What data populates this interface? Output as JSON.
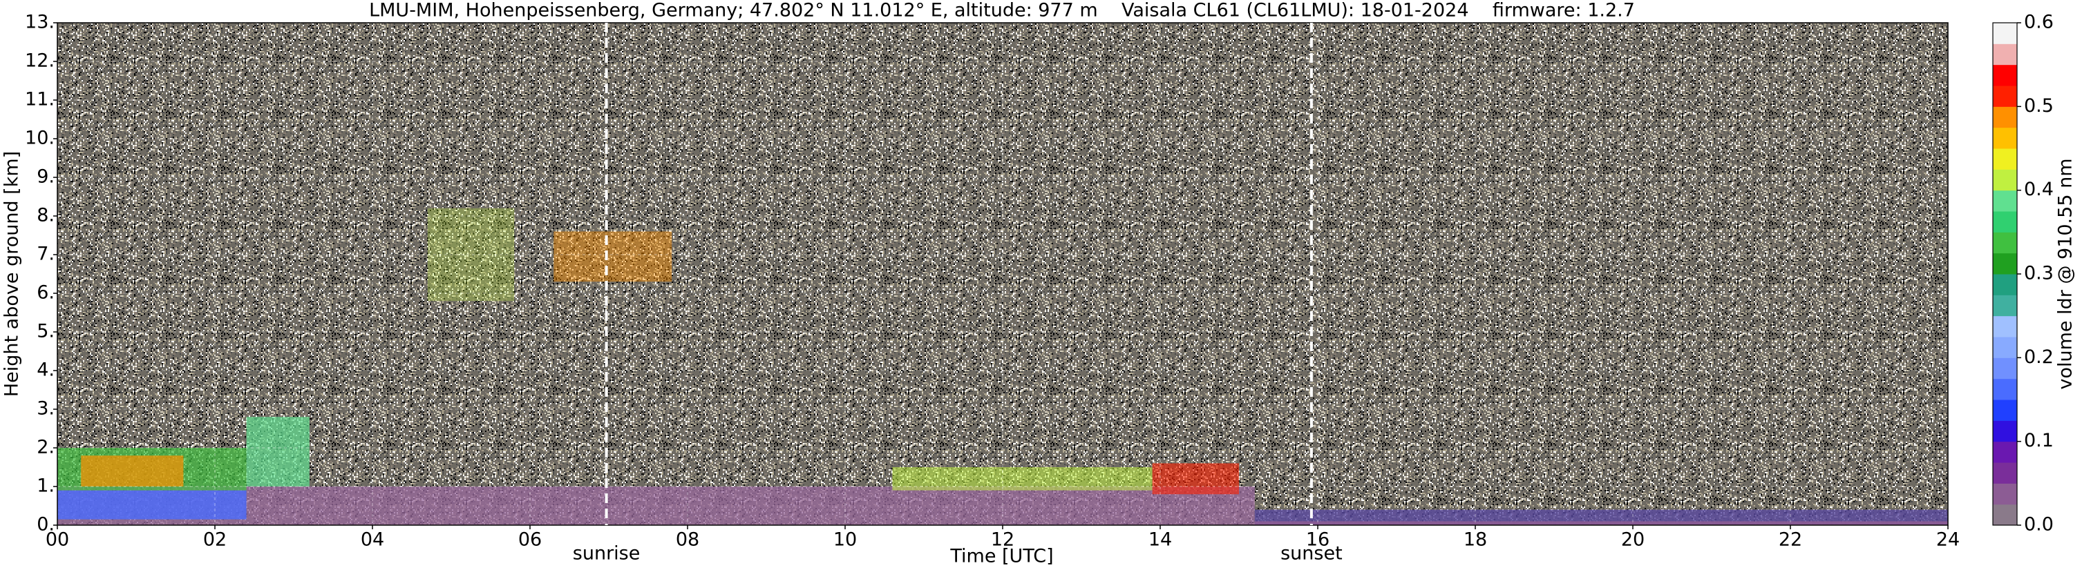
{
  "chart_data": {
    "type": "heatmap",
    "title": "LMU-MIM, Hohenpeissenberg, Germany; 47.802° N 11.012° E, altitude: 977 m    Vaisala CL61 (CL61LMU): 18-01-2024    firmware: 1.2.7",
    "xlabel": "Time [UTC]",
    "ylabel": "Height above ground [km]",
    "xlim": [
      0,
      24
    ],
    "xticks": [
      {
        "value": 0,
        "label": "00"
      },
      {
        "value": 2,
        "label": "02"
      },
      {
        "value": 4,
        "label": "04"
      },
      {
        "value": 6,
        "label": "06"
      },
      {
        "value": 8,
        "label": "08"
      },
      10,
      12,
      14,
      16,
      18,
      20,
      22,
      24
    ],
    "ylim": [
      0,
      13
    ],
    "yticks": [
      {
        "value": 0,
        "label": "0."
      },
      {
        "value": 1,
        "label": "1."
      },
      {
        "value": 2,
        "label": "2."
      },
      {
        "value": 3,
        "label": "3."
      },
      {
        "value": 4,
        "label": "4."
      },
      {
        "value": 5,
        "label": "5."
      },
      {
        "value": 6,
        "label": "6."
      },
      {
        "value": 7,
        "label": "7."
      },
      {
        "value": 8,
        "label": "8."
      },
      {
        "value": 9,
        "label": "9."
      },
      {
        "value": 10,
        "label": "10."
      },
      {
        "value": 11,
        "label": "11."
      },
      {
        "value": 12,
        "label": "12."
      },
      {
        "value": 13,
        "label": "13."
      }
    ],
    "grid": true,
    "annotations": [
      {
        "label": "sunrise",
        "x": 6.97
      },
      {
        "label": "sunset",
        "x": 15.92
      }
    ],
    "colorbar": {
      "label": "volume ldr @ 910.55 nm",
      "lim": [
        0,
        0.6
      ],
      "ticks": [
        {
          "value": 0,
          "label": "0.0"
        },
        0.1,
        0.2,
        0.3,
        0.4,
        0.5,
        0.6
      ],
      "colors": [
        "#8a7a8a",
        "#8c5c94",
        "#7a2e9a",
        "#6a18b0",
        "#3010e0",
        "#2040ff",
        "#4a6cff",
        "#7090ff",
        "#88aaff",
        "#a0c0ff",
        "#40b0a0",
        "#20a080",
        "#20a020",
        "#40c040",
        "#30d070",
        "#60e090",
        "#c0f040",
        "#f0f020",
        "#ffc000",
        "#ff9000",
        "#ff2000",
        "#ff0000",
        "#f0b0b0",
        "#f4f4f4"
      ]
    }
  }
}
